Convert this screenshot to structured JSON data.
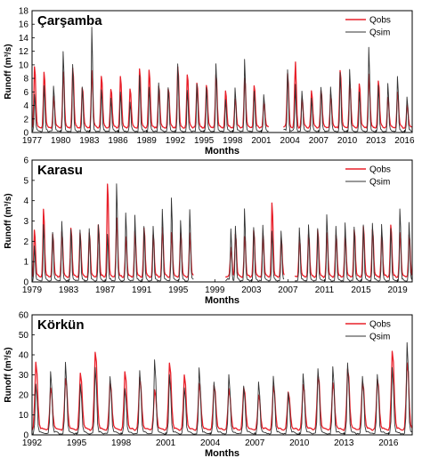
{
  "chart_data": [
    {
      "type": "line",
      "title": "Çarşamba",
      "xlabel": "Months",
      "ylabel": "Runoff (m³/s)",
      "xlim": [
        1977,
        2016.8
      ],
      "ylim": [
        0,
        18
      ],
      "yticks": [
        0,
        2,
        4,
        6,
        8,
        10,
        12,
        14,
        16,
        18
      ],
      "xticks": [
        1977,
        1980,
        1983,
        1986,
        1989,
        1992,
        1995,
        1998,
        2001,
        2004,
        2007,
        2010,
        2013,
        2016
      ],
      "grid": false,
      "legend": "top-right",
      "gaps": [
        [
          2001.8,
          2003.3
        ]
      ],
      "series": [
        {
          "name": "Qobs",
          "color": "#e8202a",
          "peaks": [
            [
              1977,
              9.4
            ],
            [
              1978,
              8.5
            ],
            [
              1979,
              4.8
            ],
            [
              1980,
              8.7
            ],
            [
              1981,
              9.0
            ],
            [
              1982,
              6.2
            ],
            [
              1983,
              8.7
            ],
            [
              1984,
              8.0
            ],
            [
              1985,
              6.0
            ],
            [
              1986,
              7.7
            ],
            [
              1987,
              6.0
            ],
            [
              1988,
              8.8
            ],
            [
              1989,
              8.8
            ],
            [
              1990,
              6.5
            ],
            [
              1991,
              6.0
            ],
            [
              1992,
              9.2
            ],
            [
              1993,
              8.2
            ],
            [
              1994,
              6.8
            ],
            [
              1995,
              6.5
            ],
            [
              1996,
              8.3
            ],
            [
              1997,
              5.5
            ],
            [
              1998,
              4.5
            ],
            [
              1999,
              7.7
            ],
            [
              2000,
              6.5
            ],
            [
              2001,
              4.0
            ],
            [
              2003.5,
              8.2
            ],
            [
              2004.3,
              9.5
            ],
            [
              2005,
              4.5
            ],
            [
              2006,
              5.6
            ],
            [
              2007,
              5.6
            ],
            [
              2008,
              5.0
            ],
            [
              2009,
              8.7
            ],
            [
              2010,
              7.0
            ],
            [
              2011,
              6.8
            ],
            [
              2012,
              8.0
            ],
            [
              2013,
              7.0
            ],
            [
              2014,
              4.5
            ],
            [
              2015,
              5.5
            ],
            [
              2016,
              3.5
            ]
          ]
        },
        {
          "name": "Qsim",
          "color": "#333333",
          "peaks": [
            [
              1977,
              5.7
            ],
            [
              1978,
              7.0
            ],
            [
              1979,
              7.2
            ],
            [
              1980,
              12.7
            ],
            [
              1981,
              10.3
            ],
            [
              1982,
              7.0
            ],
            [
              1983,
              16.3
            ],
            [
              1984,
              6.5
            ],
            [
              1985,
              5.0
            ],
            [
              1986,
              6.0
            ],
            [
              1987,
              4.5
            ],
            [
              1988,
              8.5
            ],
            [
              1989,
              7.0
            ],
            [
              1990,
              7.7
            ],
            [
              1991,
              6.7
            ],
            [
              1992,
              10.6
            ],
            [
              1993,
              6.3
            ],
            [
              1994,
              7.2
            ],
            [
              1995,
              6.7
            ],
            [
              1996,
              10.7
            ],
            [
              1997,
              5.0
            ],
            [
              1998,
              6.6
            ],
            [
              1999,
              11.1
            ],
            [
              2000,
              6.1
            ],
            [
              2001,
              5.8
            ],
            [
              2003.5,
              9.5
            ],
            [
              2004.3,
              6.8
            ],
            [
              2005,
              6.3
            ],
            [
              2006,
              5.0
            ],
            [
              2007,
              7.0
            ],
            [
              2008,
              6.7
            ],
            [
              2009,
              9.1
            ],
            [
              2010,
              9.5
            ],
            [
              2011,
              6.2
            ],
            [
              2012,
              13.0
            ],
            [
              2013,
              7.0
            ],
            [
              2014,
              7.6
            ],
            [
              2015,
              8.7
            ],
            [
              2016,
              5.3
            ]
          ]
        }
      ]
    },
    {
      "type": "line",
      "title": "Karasu",
      "xlabel": "Months",
      "ylabel": "Runoff (m³/s)",
      "xlim": [
        1979,
        2020.6
      ],
      "ylim": [
        0,
        6
      ],
      "yticks": [
        0,
        1,
        2,
        3,
        4,
        5,
        6
      ],
      "xticks": [
        1979,
        1983,
        1987,
        1991,
        1995,
        1999,
        2003,
        2007,
        2011,
        2015,
        2019
      ],
      "grid": false,
      "legend": "top-right",
      "gaps": [
        [
          1996.7,
          2000.1
        ],
        [
          2006.6,
          2007.7
        ]
      ],
      "series": [
        {
          "name": "Qobs",
          "color": "#e8202a",
          "peaks": [
            [
              1979,
              2.4
            ],
            [
              1980,
              3.4
            ],
            [
              1981,
              2.2
            ],
            [
              1982,
              2.3
            ],
            [
              1983,
              2.5
            ],
            [
              1984,
              2.2
            ],
            [
              1985,
              2.3
            ],
            [
              1986,
              2.6
            ],
            [
              1987,
              4.8
            ],
            [
              1988,
              3.0
            ],
            [
              1989,
              2.1
            ],
            [
              1990,
              2.3
            ],
            [
              1991,
              2.5
            ],
            [
              1992,
              2.1
            ],
            [
              1993,
              2.5
            ],
            [
              1994,
              2.3
            ],
            [
              1995,
              2.2
            ],
            [
              1996,
              2.2
            ],
            [
              2000.5,
              1.5
            ],
            [
              2001,
              2.2
            ],
            [
              2002,
              2.1
            ],
            [
              2003,
              2.4
            ],
            [
              2004,
              2.2
            ],
            [
              2005,
              3.7
            ],
            [
              2006,
              2.0
            ],
            [
              2008,
              2.0
            ],
            [
              2009,
              2.2
            ],
            [
              2010,
              2.4
            ],
            [
              2011,
              2.3
            ],
            [
              2012,
              2.2
            ],
            [
              2013,
              2.1
            ],
            [
              2014,
              2.4
            ],
            [
              2015,
              2.6
            ],
            [
              2016,
              2.4
            ],
            [
              2017,
              2.2
            ],
            [
              2018,
              2.7
            ],
            [
              2019,
              2.3
            ],
            [
              2020,
              2.2
            ]
          ]
        },
        {
          "name": "Qsim",
          "color": "#333333",
          "peaks": [
            [
              1979,
              1.8
            ],
            [
              1980,
              3.0
            ],
            [
              1981,
              2.5
            ],
            [
              1982,
              3.1
            ],
            [
              1983,
              2.7
            ],
            [
              1984,
              2.6
            ],
            [
              1985,
              2.8
            ],
            [
              1986,
              3.0
            ],
            [
              1987,
              2.5
            ],
            [
              1988,
              5.1
            ],
            [
              1989,
              3.6
            ],
            [
              1990,
              3.4
            ],
            [
              1991,
              2.9
            ],
            [
              1992,
              2.8
            ],
            [
              1993,
              3.8
            ],
            [
              1994,
              4.3
            ],
            [
              1995,
              3.2
            ],
            [
              1996,
              3.8
            ],
            [
              2000.5,
              2.7
            ],
            [
              2001,
              2.8
            ],
            [
              2002,
              3.7
            ],
            [
              2003,
              2.8
            ],
            [
              2004,
              2.9
            ],
            [
              2005,
              2.6
            ],
            [
              2006,
              2.6
            ],
            [
              2008,
              2.8
            ],
            [
              2009,
              2.9
            ],
            [
              2010,
              2.7
            ],
            [
              2011,
              3.5
            ],
            [
              2012,
              2.9
            ],
            [
              2013,
              3.0
            ],
            [
              2014,
              2.8
            ],
            [
              2015,
              2.9
            ],
            [
              2016,
              3.0
            ],
            [
              2017,
              2.9
            ],
            [
              2018,
              2.8
            ],
            [
              2019,
              3.8
            ],
            [
              2020,
              3.0
            ]
          ]
        }
      ]
    },
    {
      "type": "line",
      "title": "Körkün",
      "xlabel": "Months",
      "ylabel": "Runoff (m³/s)",
      "xlim": [
        1992,
        2017.6
      ],
      "ylim": [
        0,
        60
      ],
      "yticks": [
        0,
        10,
        20,
        30,
        40,
        50,
        60
      ],
      "xticks": [
        1992,
        1995,
        1998,
        2001,
        2004,
        2007,
        2010,
        2013,
        2016
      ],
      "grid": false,
      "legend": "top-right",
      "gaps": [],
      "series": [
        {
          "name": "Qobs",
          "color": "#e8202a",
          "peaks": [
            [
              1992,
              35
            ],
            [
              1993,
              22
            ],
            [
              1994,
              27
            ],
            [
              1995,
              30
            ],
            [
              1996,
              41
            ],
            [
              1997,
              25
            ],
            [
              1998,
              30
            ],
            [
              1999,
              27
            ],
            [
              2000,
              21
            ],
            [
              2001,
              35
            ],
            [
              2002,
              28
            ],
            [
              2003,
              24
            ],
            [
              2004,
              23
            ],
            [
              2005,
              21
            ],
            [
              2006,
              22
            ],
            [
              2007,
              18
            ],
            [
              2008,
              23
            ],
            [
              2009,
              20
            ],
            [
              2010,
              24
            ],
            [
              2011,
              29
            ],
            [
              2012,
              25
            ],
            [
              2013,
              32
            ],
            [
              2014,
              25
            ],
            [
              2015,
              26
            ],
            [
              2016,
              41
            ],
            [
              2017,
              35
            ]
          ]
        },
        {
          "name": "Qsim",
          "color": "#333333",
          "peaks": [
            [
              1992,
              26
            ],
            [
              1993,
              33
            ],
            [
              1994,
              38
            ],
            [
              1995,
              27
            ],
            [
              1996,
              36
            ],
            [
              1997,
              30
            ],
            [
              1998,
              24
            ],
            [
              1999,
              33
            ],
            [
              2000,
              40
            ],
            [
              2001,
              32
            ],
            [
              2002,
              25
            ],
            [
              2003,
              35
            ],
            [
              2004,
              28
            ],
            [
              2005,
              31
            ],
            [
              2006,
              25
            ],
            [
              2007,
              28
            ],
            [
              2008,
              30
            ],
            [
              2009,
              22
            ],
            [
              2010,
              32
            ],
            [
              2011,
              35
            ],
            [
              2012,
              36
            ],
            [
              2013,
              37
            ],
            [
              2014,
              31
            ],
            [
              2015,
              32
            ],
            [
              2016,
              36
            ],
            [
              2017,
              48
            ]
          ]
        }
      ]
    }
  ]
}
